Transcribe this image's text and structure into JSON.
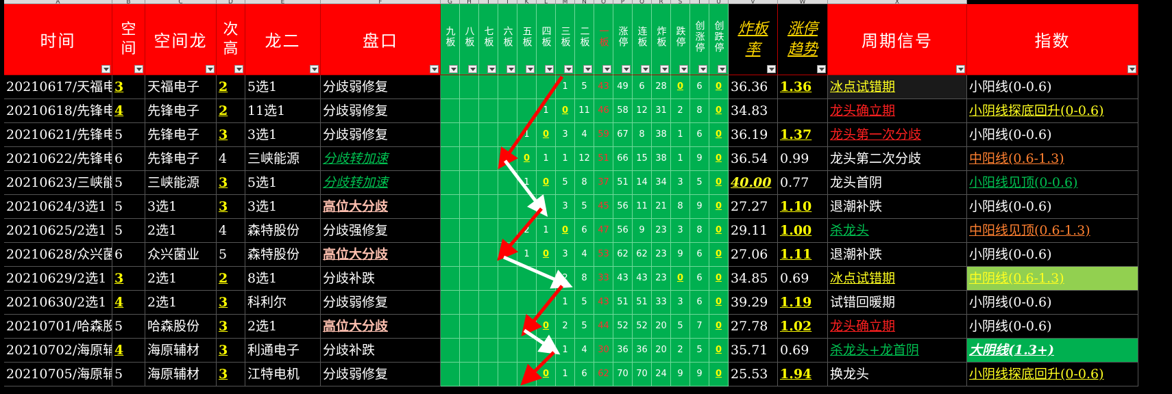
{
  "column_letters": [
    "A",
    "B",
    "C",
    "D",
    "E",
    "F",
    "G",
    "H",
    "I",
    "J",
    "K",
    "L",
    "M",
    "N",
    "O",
    "P",
    "Q",
    "R",
    "S",
    "T",
    "U",
    "V",
    "W",
    "X"
  ],
  "headers": {
    "time": "时间",
    "space": "空间",
    "space_dragon": "空间龙",
    "second_high": "次高",
    "dragon_two": "龙二",
    "market": "盘口",
    "boards": [
      "九板",
      "八板",
      "七板",
      "六板",
      "五板",
      "四板",
      "三板",
      "二板",
      "一板",
      "涨停",
      "连板",
      "炸板",
      "跌停",
      "创涨停",
      "创跌停"
    ],
    "blast_rate": "炸板率",
    "limit_trend": "涨停趋势",
    "cycle_signal": "周期信号",
    "index": "指数"
  },
  "rows": [
    {
      "time": "20210617/天福电子",
      "space": "3",
      "space_dragon": "天福电子",
      "second_high": "2",
      "dragon_two": "5选1",
      "market": "分歧弱修复",
      "boards": [
        "",
        "",
        "",
        "",
        "",
        "",
        "1",
        "5",
        "43",
        "49",
        "6",
        "28",
        "0",
        "6",
        "0"
      ],
      "blast_rate": "36.36",
      "limit_trend": "1.36",
      "cycle_signal": "冰点试错期",
      "index": "小阳线(0-0.6)"
    },
    {
      "time": "20210618/先锋电子",
      "space": "4",
      "space_dragon": "先锋电子",
      "second_high": "2",
      "dragon_two": "11选1",
      "market": "分歧弱修复",
      "boards": [
        "",
        "",
        "",
        "",
        "",
        "1",
        "0",
        "11",
        "46",
        "58",
        "12",
        "31",
        "2",
        "8",
        "0"
      ],
      "blast_rate": "34.83",
      "limit_trend": "",
      "cycle_signal": "龙头确立期",
      "index": "小阴线探底回升(0-0.6)"
    },
    {
      "time": "20210621/先锋电子",
      "space": "5",
      "space_dragon": "先锋电子",
      "second_high": "3",
      "dragon_two": "3选1",
      "market": "分歧弱修复",
      "boards": [
        "",
        "",
        "",
        "",
        "1",
        "0",
        "3",
        "4",
        "59",
        "67",
        "8",
        "38",
        "1",
        "6",
        "0"
      ],
      "blast_rate": "36.19",
      "limit_trend": "1.37",
      "cycle_signal": "龙头第一次分歧",
      "index": "小阳线(0-0.6)"
    },
    {
      "time": "20210622/先锋电子",
      "space": "6",
      "space_dragon": "先锋电子",
      "second_high": "4",
      "dragon_two": "三峡能源",
      "market": "分歧转加速",
      "boards": [
        "",
        "",
        "",
        "",
        "0",
        "1",
        "1",
        "12",
        "51",
        "66",
        "15",
        "38",
        "1",
        "9",
        "0"
      ],
      "blast_rate": "36.54",
      "limit_trend": "0.99",
      "cycle_signal": "龙头第二次分歧",
      "index": "中阳线(0.6-1.3)"
    },
    {
      "time": "20210623/三峡能源",
      "space": "5",
      "space_dragon": "三峡能源",
      "second_high": "3",
      "dragon_two": "5选1",
      "market": "分歧转加速",
      "boards": [
        "",
        "",
        "",
        "",
        "1",
        "0",
        "5",
        "8",
        "37",
        "51",
        "14",
        "34",
        "3",
        "5",
        "0"
      ],
      "blast_rate": "40.00",
      "limit_trend": "0.77",
      "cycle_signal": "龙头首阴",
      "index": "小阳线见顶(0-0.6)"
    },
    {
      "time": "20210624/3选1",
      "space": "5",
      "space_dragon": "3选1",
      "second_high": "3",
      "dragon_two": "3选1",
      "market": "高位大分歧",
      "boards": [
        "",
        "",
        "",
        "",
        "",
        "",
        "3",
        "5",
        "45",
        "56",
        "11",
        "21",
        "8",
        "9",
        "0"
      ],
      "blast_rate": "27.27",
      "limit_trend": "1.10",
      "cycle_signal": "退潮补跌",
      "index": "小阳线(0-0.6)"
    },
    {
      "time": "20210625/2选1",
      "space": "5",
      "space_dragon": "2选1",
      "second_high": "4",
      "dragon_two": "森特股份",
      "market": "分歧强修复",
      "boards": [
        "",
        "",
        "",
        "",
        "2",
        "1",
        "0",
        "6",
        "47",
        "56",
        "9",
        "23",
        "3",
        "8",
        "0"
      ],
      "blast_rate": "29.11",
      "limit_trend": "1.00",
      "cycle_signal": "杀龙头",
      "index": "中阳线见顶(0.6-1.3)"
    },
    {
      "time": "20210628/众兴菌业",
      "space": "6",
      "space_dragon": "众兴菌业",
      "second_high": "5",
      "dragon_two": "森特股份",
      "market": "高位大分歧",
      "boards": [
        "",
        "",
        "",
        "",
        "1",
        "0",
        "3",
        "4",
        "53",
        "62",
        "62",
        "23",
        "9",
        "6",
        "0"
      ],
      "blast_rate": "27.06",
      "limit_trend": "1.11",
      "cycle_signal": "退潮补跌",
      "index": "小阴线(0-0.6)"
    },
    {
      "time": "20210629/2选1",
      "space": "3",
      "space_dragon": "2选1",
      "second_high": "2",
      "dragon_two": "8选1",
      "market": "分歧补跌",
      "boards": [
        "",
        "",
        "",
        "",
        "",
        "",
        "2",
        "8",
        "33",
        "43",
        "43",
        "23",
        "0",
        "6",
        "0"
      ],
      "blast_rate": "34.85",
      "limit_trend": "0.69",
      "cycle_signal": "冰点试错期",
      "index": "中阴线(0.6-1.3)"
    },
    {
      "time": "20210630/2选1",
      "space": "4",
      "space_dragon": "2选1",
      "second_high": "3",
      "dragon_two": "科利尔",
      "market": "分歧弱修复",
      "boards": [
        "",
        "",
        "",
        "",
        "",
        "",
        "1",
        "5",
        "43",
        "51",
        "51",
        "33",
        "3",
        "6",
        "0"
      ],
      "blast_rate": "39.29",
      "limit_trend": "1.19",
      "cycle_signal": "试错回暖期",
      "index": "小阴线(0-0.6)"
    },
    {
      "time": "20210701/哈森股份",
      "space": "5",
      "space_dragon": "哈森股份",
      "second_high": "3",
      "dragon_two": "2选1",
      "market": "高位大分歧",
      "boards": [
        "",
        "",
        "",
        "",
        "",
        "0",
        "2",
        "5",
        "44",
        "52",
        "52",
        "20",
        "5",
        "7",
        "0"
      ],
      "blast_rate": "27.78",
      "limit_trend": "1.02",
      "cycle_signal": "龙头确立期",
      "index": "小阴线(0-0.6)"
    },
    {
      "time": "20210702/海原辅材",
      "space": "4",
      "space_dragon": "海原辅材",
      "second_high": "3",
      "dragon_two": "利通电子",
      "market": "分歧补跌",
      "boards": [
        "",
        "",
        "",
        "",
        "",
        "",
        "1",
        "4",
        "30",
        "36",
        "36",
        "20",
        "2",
        "5",
        "0"
      ],
      "blast_rate": "35.71",
      "limit_trend": "0.69",
      "cycle_signal": "杀龙头+龙首阴",
      "index": "大阴线(1.3+)"
    },
    {
      "time": "20210705/海原辅材",
      "space": "5",
      "space_dragon": "海原辅材",
      "second_high": "3",
      "dragon_two": "江特电机",
      "market": "分歧弱修复",
      "boards": [
        "",
        "",
        "",
        "",
        "",
        "0",
        "1",
        "6",
        "62",
        "70",
        "70",
        "24",
        "9",
        "9",
        "0"
      ],
      "blast_rate": "25.53",
      "limit_trend": "1.94",
      "cycle_signal": "换龙头",
      "index": "小阴线探底回升(0-0.6)"
    }
  ],
  "styles": {
    "space_yellow": [
      true,
      true,
      false,
      false,
      false,
      false,
      false,
      false,
      true,
      true,
      false,
      true,
      false
    ],
    "second_yellow": [
      true,
      true,
      true,
      false,
      true,
      true,
      false,
      false,
      true,
      true,
      true,
      true,
      true
    ],
    "market_class": [
      "",
      "",
      "",
      "grn-it",
      "grn-it",
      "pink-t",
      "",
      "pink-t",
      "",
      "",
      "pink-t",
      "",
      ""
    ],
    "blast_class": [
      "",
      "",
      "",
      "",
      "yel-it",
      "",
      "",
      "",
      "",
      "",
      "",
      "",
      ""
    ],
    "trend_class": [
      "yb",
      "",
      "yb",
      "",
      "",
      "yb",
      "yb",
      "yb",
      "",
      "yb",
      "yb",
      "",
      "yb"
    ],
    "signal_class": [
      "yel-t",
      "red-t",
      "red-t",
      "",
      "",
      "",
      "grn-t",
      "",
      "yel-t",
      "",
      "red-t",
      "grn-t",
      ""
    ],
    "index_class": [
      "",
      "yel-t",
      "",
      "org-t",
      "grn-t",
      "",
      "org-t",
      "",
      "yel-t",
      "",
      "",
      "wh-it",
      "yel-t"
    ],
    "index_bg": [
      "",
      "",
      "",
      "",
      "",
      "",
      "",
      "",
      "#92d050",
      "",
      "",
      "#00b050",
      ""
    ],
    "signal_bg": [
      "#1a1a1a",
      "",
      "",
      "",
      "",
      "",
      "",
      "",
      "",
      "",
      "",
      "",
      ""
    ]
  },
  "colors": {
    "header_red": "#ff0000",
    "board_green": "#00b050",
    "arrow_red": "#ff0000",
    "arrow_white": "#ffffff"
  }
}
